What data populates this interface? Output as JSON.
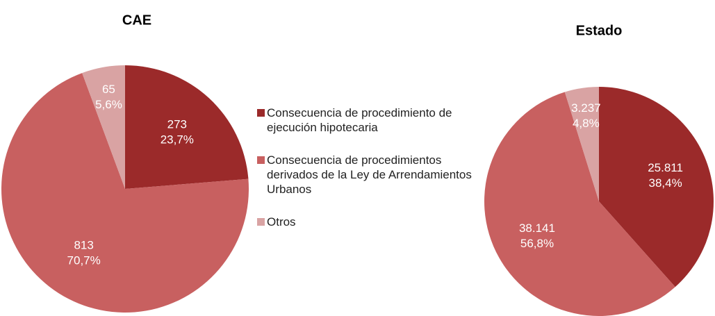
{
  "legend": {
    "items": [
      {
        "label": "Consecuencia de procedimiento de ejecución hipotecaria",
        "color": "#9b2a2a"
      },
      {
        "label": "Consecuencia de procedimientos derivados de la Ley de Arrendamientos Urbanos",
        "color": "#c86060"
      },
      {
        "label": "Otros",
        "color": "#d9a3a3"
      }
    ]
  },
  "chart_data": [
    {
      "type": "pie",
      "title": "CAE",
      "values": [
        273,
        813,
        65
      ],
      "percentages": [
        23.7,
        70.7,
        5.6
      ],
      "percentage_labels": [
        "23,7%",
        "70,7%",
        "5,6%"
      ]
    },
    {
      "type": "pie",
      "title": "Estado",
      "values": [
        25811,
        38141,
        3237
      ],
      "value_labels": [
        "25.811",
        "38.141",
        "3.237"
      ],
      "percentages": [
        38.4,
        56.8,
        4.8
      ],
      "percentage_labels": [
        "38,4%",
        "56,8%",
        "4,8%"
      ]
    }
  ]
}
